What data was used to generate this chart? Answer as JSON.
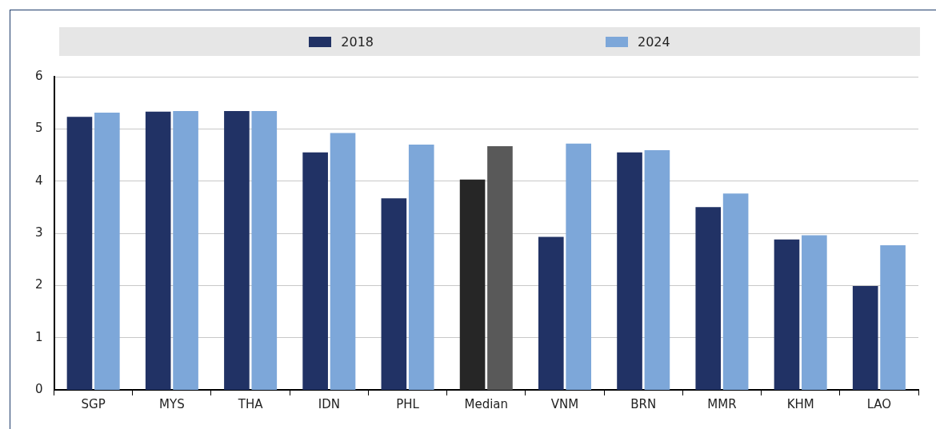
{
  "chart_data": {
    "type": "bar",
    "categories": [
      "SGP",
      "MYS",
      "THA",
      "IDN",
      "PHL",
      "Median",
      "VNM",
      "BRN",
      "MMR",
      "KHM",
      "LAO"
    ],
    "series": [
      {
        "name": "2018",
        "color": "#213265",
        "colors": [
          "#213265",
          "#213265",
          "#213265",
          "#213265",
          "#213265",
          "#262626",
          "#213265",
          "#213265",
          "#213265",
          "#213265",
          "#213265"
        ],
        "values": [
          5.23,
          5.33,
          5.34,
          4.55,
          3.67,
          4.03,
          2.93,
          4.55,
          3.5,
          2.88,
          1.99
        ]
      },
      {
        "name": "2024",
        "color": "#7da7d9",
        "colors": [
          "#7da7d9",
          "#7da7d9",
          "#7da7d9",
          "#7da7d9",
          "#7da7d9",
          "#595959",
          "#7da7d9",
          "#7da7d9",
          "#7da7d9",
          "#7da7d9",
          "#7da7d9"
        ],
        "values": [
          5.31,
          5.34,
          5.34,
          4.92,
          4.7,
          4.67,
          4.72,
          4.59,
          3.76,
          2.96,
          2.77
        ]
      }
    ],
    "ylim": [
      0,
      6
    ],
    "yticks": [
      0,
      1,
      2,
      3,
      4,
      5,
      6
    ],
    "grid": "y",
    "legend": "top"
  }
}
